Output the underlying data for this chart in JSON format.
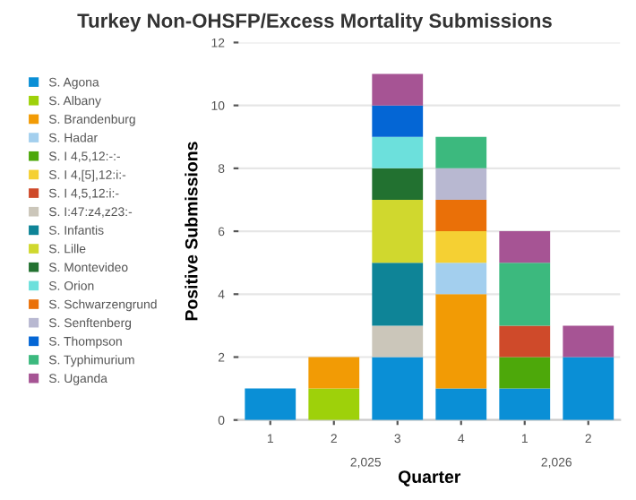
{
  "chart_data": {
    "type": "bar",
    "title": "Turkey Non-OHSFP/Excess Mortality Submissions",
    "xlabel": "Quarter",
    "ylabel": "Positive Submissions",
    "categories": [
      "1",
      "2",
      "3",
      "4",
      "1",
      "2"
    ],
    "annotations": [
      "2,025",
      "2,026"
    ],
    "stacked": true,
    "ylim": [
      0,
      12
    ],
    "yticks": [
      0,
      2,
      4,
      6,
      8,
      10,
      12
    ],
    "grid": "y",
    "legend": "left",
    "series": [
      {
        "name": "S. Agona",
        "color": "#0a8fd6",
        "values": [
          1,
          0,
          2,
          1,
          1,
          2
        ]
      },
      {
        "name": "S. Albany",
        "color": "#9ed10a",
        "values": [
          0,
          1,
          0,
          0,
          0,
          0
        ]
      },
      {
        "name": "S. Brandenburg",
        "color": "#f29b05",
        "values": [
          0,
          1,
          0,
          3,
          0,
          0
        ]
      },
      {
        "name": "S. Hadar",
        "color": "#a3cfee",
        "values": [
          0,
          0,
          0,
          1,
          0,
          0
        ]
      },
      {
        "name": "S. I 4,5,12:-:-",
        "color": "#4da80a",
        "values": [
          0,
          0,
          0,
          0,
          1,
          0
        ]
      },
      {
        "name": "S. I 4,[5],12:i:-",
        "color": "#f5d033",
        "values": [
          0,
          0,
          0,
          1,
          0,
          0
        ]
      },
      {
        "name": "S. I 4,5,12:i:-",
        "color": "#cf4a2a",
        "values": [
          0,
          0,
          0,
          0,
          1,
          0
        ]
      },
      {
        "name": "S. I:47:z4,z23:-",
        "color": "#cbc6ba",
        "values": [
          0,
          0,
          1,
          0,
          0,
          0
        ]
      },
      {
        "name": "S. Infantis",
        "color": "#0e8497",
        "values": [
          0,
          0,
          2,
          0,
          0,
          0
        ]
      },
      {
        "name": "S. Lille",
        "color": "#d0d82e",
        "values": [
          0,
          0,
          2,
          0,
          0,
          0
        ]
      },
      {
        "name": "S. Montevideo",
        "color": "#227130",
        "values": [
          0,
          0,
          1,
          0,
          0,
          0
        ]
      },
      {
        "name": "S. Orion",
        "color": "#6ce0dc",
        "values": [
          0,
          0,
          1,
          0,
          0,
          0
        ]
      },
      {
        "name": "S. Schwarzengrund",
        "color": "#ea7008",
        "values": [
          0,
          0,
          0,
          1,
          0,
          0
        ]
      },
      {
        "name": "S. Senftenberg",
        "color": "#b8b8d1",
        "values": [
          0,
          0,
          0,
          1,
          0,
          0
        ]
      },
      {
        "name": "S. Thompson",
        "color": "#0466d5",
        "values": [
          0,
          0,
          1,
          0,
          0,
          0
        ]
      },
      {
        "name": "S. Typhimurium",
        "color": "#3cb97e",
        "values": [
          0,
          0,
          0,
          1,
          2,
          0
        ]
      },
      {
        "name": "S. Uganda",
        "color": "#a65494",
        "values": [
          0,
          0,
          1,
          0,
          1,
          1
        ]
      }
    ]
  }
}
